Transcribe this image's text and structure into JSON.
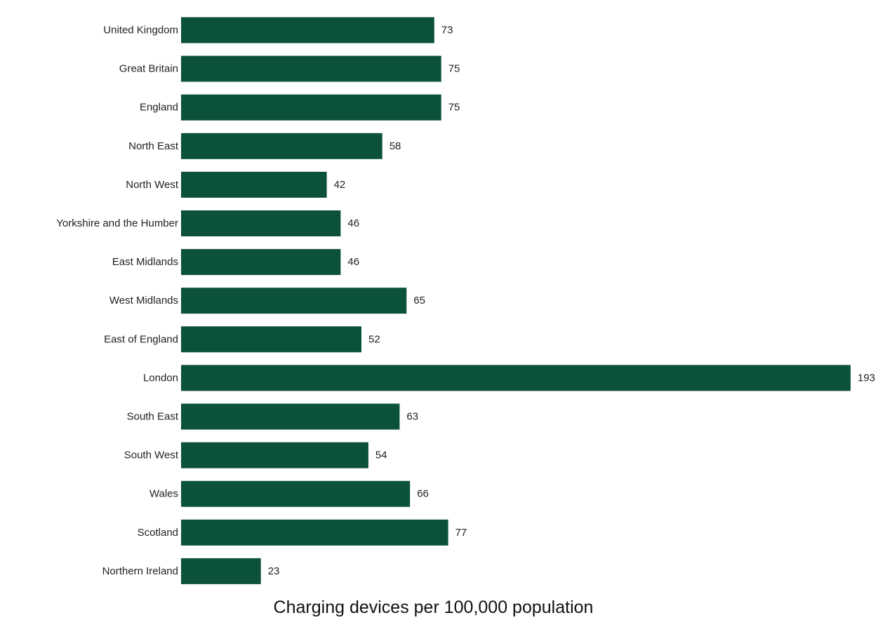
{
  "chart_data": {
    "type": "bar",
    "orientation": "horizontal",
    "categories": [
      "United Kingdom",
      "Great Britain",
      "England",
      "North East",
      "North West",
      "Yorkshire and the Humber",
      "East Midlands",
      "West Midlands",
      "East of England",
      "London",
      "South East",
      "South West",
      "Wales",
      "Scotland",
      "Northern Ireland"
    ],
    "values": [
      73,
      75,
      75,
      58,
      42,
      46,
      46,
      65,
      52,
      193,
      63,
      54,
      66,
      77,
      23
    ],
    "title": "",
    "xlabel": "Charging devices per 100,000 population",
    "ylabel": "",
    "xlim": [
      0,
      193
    ],
    "grid": false,
    "data_labels": true,
    "bar_color": "#0b5239"
  }
}
